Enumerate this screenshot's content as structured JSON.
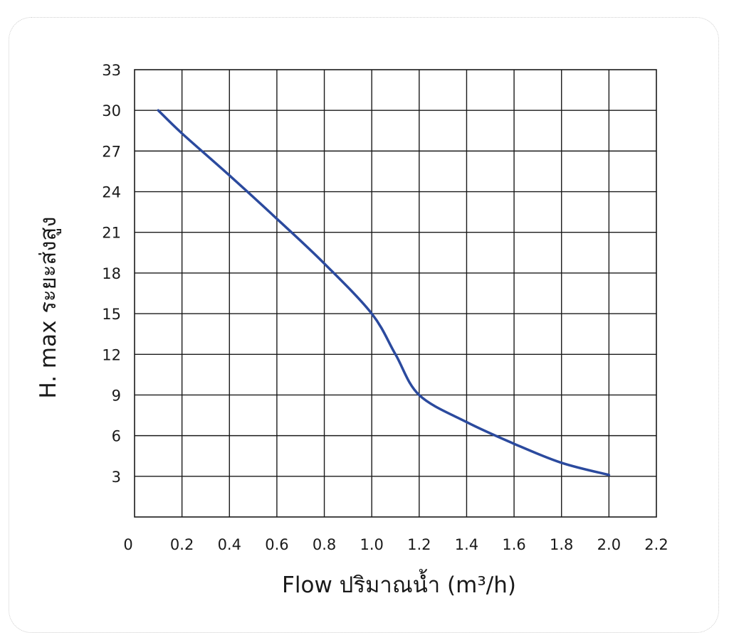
{
  "chart_data": {
    "type": "line",
    "xlabel": "Flow ปริมาณน้ำ (m³/h)",
    "ylabel": "H. max ระยะส่งสูง",
    "xlim": [
      0,
      2.2
    ],
    "ylim": [
      0,
      33
    ],
    "x_ticks": [
      "0",
      "0.2",
      "0.4",
      "0.6",
      "0.8",
      "1.0",
      "1.2",
      "1.4",
      "1.6",
      "1.8",
      "2.0",
      "2.2"
    ],
    "y_ticks": [
      "3",
      "6",
      "9",
      "12",
      "15",
      "18",
      "21",
      "24",
      "27",
      "30",
      "33"
    ],
    "grid": true,
    "series": [
      {
        "color": "#2B4A9E",
        "x": [
          0.1,
          0.2,
          0.4,
          0.6,
          0.8,
          1.0,
          1.1,
          1.2,
          1.4,
          1.6,
          1.8,
          2.0
        ],
        "y": [
          30,
          28.3,
          25.2,
          22,
          18.7,
          15,
          12,
          9,
          7,
          5.4,
          4,
          3.1
        ]
      }
    ]
  }
}
